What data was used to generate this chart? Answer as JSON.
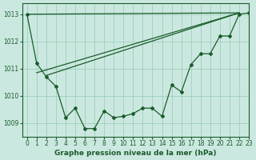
{
  "title": "Graphe pression niveau de la mer (hPa)",
  "bg_color": "#cbe8e0",
  "grid_color": "#9ecfbc",
  "line_color": "#1a5c2a",
  "xlim": [
    -0.5,
    23
  ],
  "ylim": [
    1008.5,
    1013.4
  ],
  "yticks": [
    1009,
    1010,
    1011,
    1012,
    1013
  ],
  "xticks": [
    0,
    1,
    2,
    3,
    4,
    5,
    6,
    7,
    8,
    9,
    10,
    11,
    12,
    13,
    14,
    15,
    16,
    17,
    18,
    19,
    20,
    21,
    22,
    23
  ],
  "main_series_x": [
    0,
    1,
    2,
    3,
    4,
    5,
    6,
    7,
    8,
    9,
    10,
    11,
    12,
    13,
    14,
    15,
    16,
    17,
    18,
    19,
    20,
    21,
    22,
    23
  ],
  "main_series_y": [
    1013.0,
    1011.2,
    1010.7,
    1010.35,
    1009.2,
    1009.55,
    1008.8,
    1008.8,
    1009.45,
    1009.2,
    1009.25,
    1009.35,
    1009.55,
    1009.55,
    1009.25,
    1010.4,
    1010.15,
    1011.15,
    1011.55,
    1011.55,
    1012.2,
    1012.2,
    1013.0,
    1013.05
  ],
  "line1_x": [
    0,
    22
  ],
  "line1_y": [
    1013.0,
    1013.05
  ],
  "line2_x": [
    1,
    22
  ],
  "line2_y": [
    1010.85,
    1013.05
  ],
  "line3_x": [
    2,
    22
  ],
  "line3_y": [
    1010.75,
    1013.05
  ]
}
